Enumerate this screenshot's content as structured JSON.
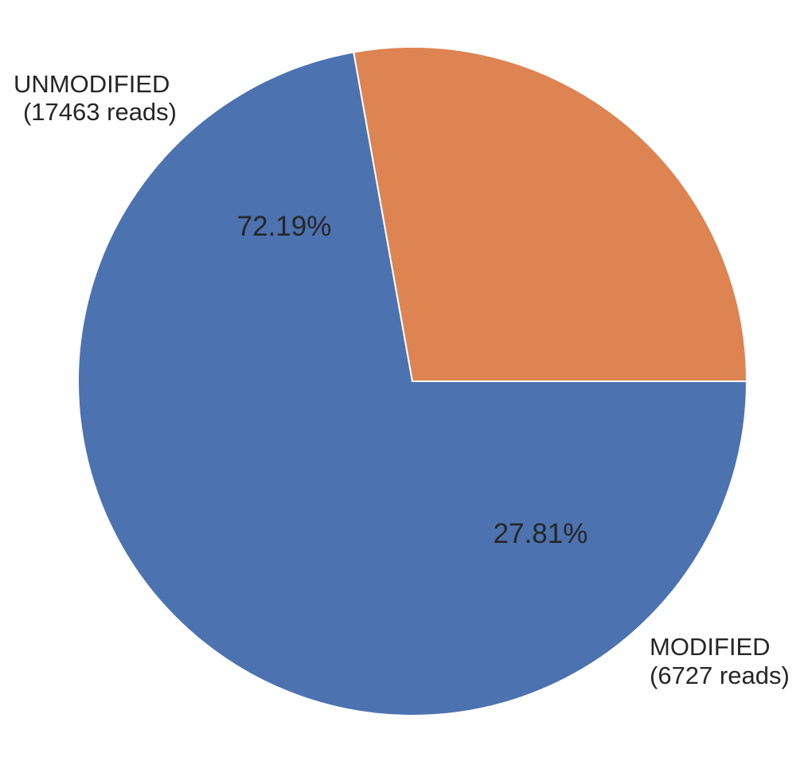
{
  "chart_data": {
    "type": "pie",
    "title": "",
    "slices": [
      {
        "name": "UNMODIFIED",
        "label_line1": "UNMODIFIED",
        "label_line2": "(17463 reads)",
        "reads": 17463,
        "percent": 72.19,
        "percent_label": "72.19%",
        "color": "#4c72b0"
      },
      {
        "name": "MODIFIED",
        "label_line1": "MODIFIED",
        "label_line2": "(6727 reads)",
        "reads": 6727,
        "percent": 27.81,
        "percent_label": "27.81%",
        "color": "#dd8452"
      }
    ],
    "start_angle_deg": 0,
    "direction": "clockwise-on-screen",
    "edge_color": "#ffffff"
  }
}
